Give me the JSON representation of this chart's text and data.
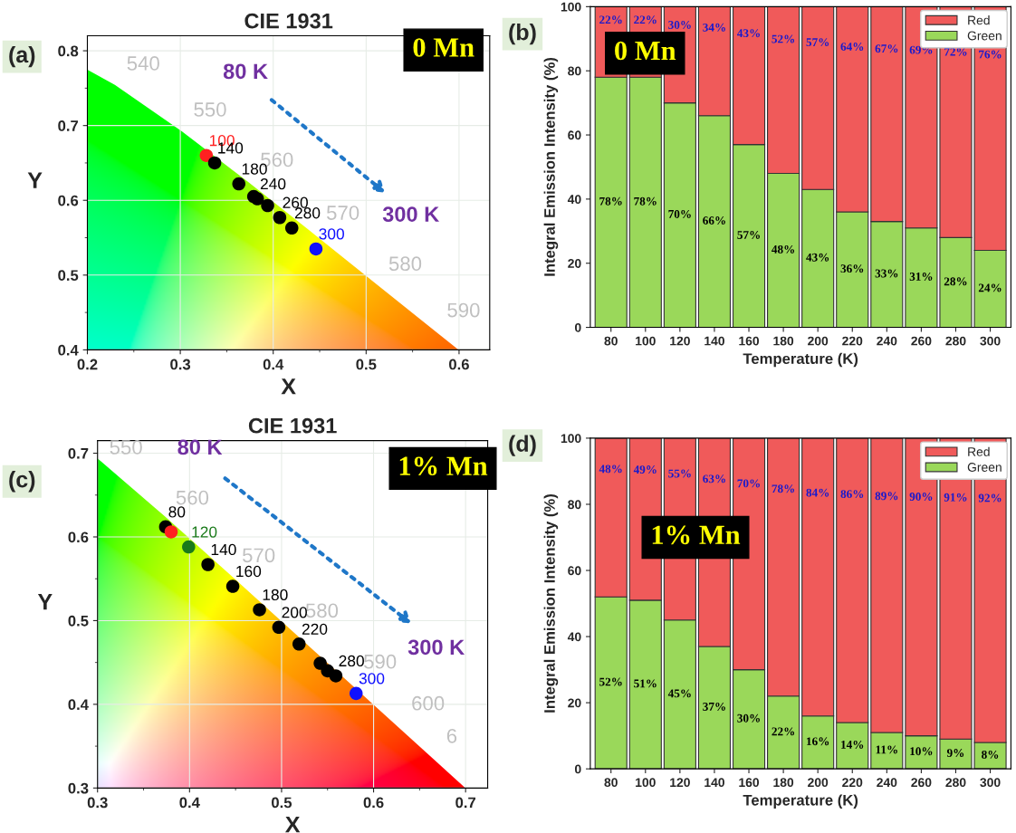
{
  "chart_data": [
    {
      "type": "scatter",
      "title": "CIE 1931",
      "xlabel": "X",
      "ylabel": "Y",
      "xlim": [
        0.2,
        0.633
      ],
      "ylim": [
        0.4,
        0.82
      ],
      "xticks": [
        0.2,
        0.3,
        0.4,
        0.5,
        0.6
      ],
      "yticks": [
        0.4,
        0.5,
        0.6,
        0.7,
        0.8
      ],
      "grid": true,
      "marker": "circle",
      "series": [
        {
          "x": [
            0.328,
            0.337,
            0.363,
            0.379,
            0.383,
            0.394,
            0.407,
            0.42,
            0.446
          ],
          "values": [
            0.66,
            0.65,
            0.622,
            0.605,
            0.602,
            0.593,
            0.577,
            0.563,
            0.535
          ],
          "colors": [
            "#ff2020",
            "#000000",
            "#000000",
            "#000000",
            "#000000",
            "#000000",
            "#000000",
            "#000000",
            "#1010ff"
          ]
        }
      ],
      "annotations": [
        "(a)",
        "0 Mn",
        "540",
        "550",
        "560",
        "570",
        "580",
        "590",
        "80 K",
        "300 K",
        {
          "text": "100",
          "x": 0.328,
          "y": 0.66
        },
        {
          "text": "140",
          "x": 0.337,
          "y": 0.65
        },
        {
          "text": "180",
          "x": 0.363,
          "y": 0.622
        },
        {
          "text": "240",
          "x": 0.383,
          "y": 0.602
        },
        {
          "text": "260",
          "x": 0.407,
          "y": 0.577
        },
        {
          "text": "280",
          "x": 0.42,
          "y": 0.563
        },
        {
          "text": "300",
          "x": 0.446,
          "y": 0.535
        }
      ]
    },
    {
      "type": "bar",
      "stacked": true,
      "categories": [
        "80",
        "100",
        "120",
        "140",
        "160",
        "180",
        "200",
        "220",
        "240",
        "260",
        "280",
        "300"
      ],
      "xlabel": "Temperature (K)",
      "ylabel": "Integral Emission Intensity (%)",
      "ylim": [
        0,
        100
      ],
      "yticks": [
        0,
        20,
        40,
        60,
        80,
        100
      ],
      "legend": "top right",
      "series": [
        {
          "name": "Green",
          "color": "#9ad85a",
          "values": [
            78,
            78,
            70,
            66,
            57,
            48,
            43,
            36,
            33,
            31,
            28,
            24
          ],
          "value_labels": [
            "78%",
            "78%",
            "70%",
            "66%",
            "57%",
            "48%",
            "43%",
            "36%",
            "33%",
            "31%",
            "28%",
            "24%"
          ]
        },
        {
          "name": "Red",
          "color": "#f05a5a",
          "values": [
            22,
            22,
            30,
            34,
            43,
            52,
            57,
            64,
            67,
            69,
            72,
            76
          ],
          "value_labels": [
            "22%",
            "22%",
            "30%",
            "34%",
            "43%",
            "52%",
            "57%",
            "64%",
            "67%",
            "69%",
            "72%",
            "76%"
          ]
        }
      ],
      "annotations": [
        "(b)",
        "0 Mn"
      ]
    },
    {
      "type": "scatter",
      "title": "CIE 1931",
      "xlabel": "X",
      "ylabel": "Y",
      "xlim": [
        0.3,
        0.724
      ],
      "ylim": [
        0.3,
        0.715
      ],
      "xticks": [
        0.3,
        0.4,
        0.5,
        0.6,
        0.7
      ],
      "yticks": [
        0.3,
        0.4,
        0.5,
        0.6,
        0.7
      ],
      "grid": true,
      "marker": "circle",
      "series": [
        {
          "x": [
            0.374,
            0.38,
            0.399,
            0.42,
            0.447,
            0.476,
            0.497,
            0.519,
            0.542,
            0.55,
            0.559,
            0.581
          ],
          "values": [
            0.612,
            0.606,
            0.588,
            0.567,
            0.541,
            0.513,
            0.492,
            0.472,
            0.449,
            0.44,
            0.434,
            0.413
          ],
          "colors": [
            "#000000",
            "#ff2020",
            "#1a7a1a",
            "#000000",
            "#000000",
            "#000000",
            "#000000",
            "#000000",
            "#000000",
            "#000000",
            "#000000",
            "#1010ff"
          ]
        }
      ],
      "annotations": [
        "(c)",
        "1% Mn",
        "550",
        "560",
        "570",
        "580",
        "590",
        "600",
        "6",
        "80 K",
        "300 K",
        {
          "text": "80",
          "x": 0.374,
          "y": 0.612
        },
        {
          "text": "120",
          "x": 0.399,
          "y": 0.588
        },
        {
          "text": "140",
          "x": 0.42,
          "y": 0.567
        },
        {
          "text": "160",
          "x": 0.447,
          "y": 0.541
        },
        {
          "text": "180",
          "x": 0.476,
          "y": 0.513
        },
        {
          "text": "200",
          "x": 0.497,
          "y": 0.492
        },
        {
          "text": "220",
          "x": 0.519,
          "y": 0.472
        },
        {
          "text": "280",
          "x": 0.559,
          "y": 0.434
        },
        {
          "text": "300",
          "x": 0.581,
          "y": 0.413
        }
      ]
    },
    {
      "type": "bar",
      "stacked": true,
      "categories": [
        "80",
        "100",
        "120",
        "140",
        "160",
        "180",
        "200",
        "220",
        "240",
        "260",
        "280",
        "300"
      ],
      "xlabel": "Temperature (K)",
      "ylabel": "Integral Emission Intensity (%)",
      "ylim": [
        0,
        100
      ],
      "yticks": [
        0,
        20,
        40,
        60,
        80,
        100
      ],
      "legend": "top right",
      "series": [
        {
          "name": "Green",
          "color": "#9ad85a",
          "values": [
            52,
            51,
            45,
            37,
            30,
            22,
            16,
            14,
            11,
            10,
            9,
            8
          ],
          "value_labels": [
            "52%",
            "51%",
            "45%",
            "37%",
            "30%",
            "22%",
            "16%",
            "14%",
            "11%",
            "10%",
            "9%",
            "8%"
          ]
        },
        {
          "name": "Red",
          "color": "#f05a5a",
          "values": [
            48,
            49,
            55,
            63,
            70,
            78,
            84,
            86,
            89,
            90,
            91,
            92
          ],
          "value_labels": [
            "48%",
            "49%",
            "55%",
            "63%",
            "70%",
            "78%",
            "84%",
            "86%",
            "89%",
            "90%",
            "91%",
            "92%"
          ]
        }
      ],
      "annotations": [
        "(d)",
        "1% Mn"
      ]
    }
  ]
}
